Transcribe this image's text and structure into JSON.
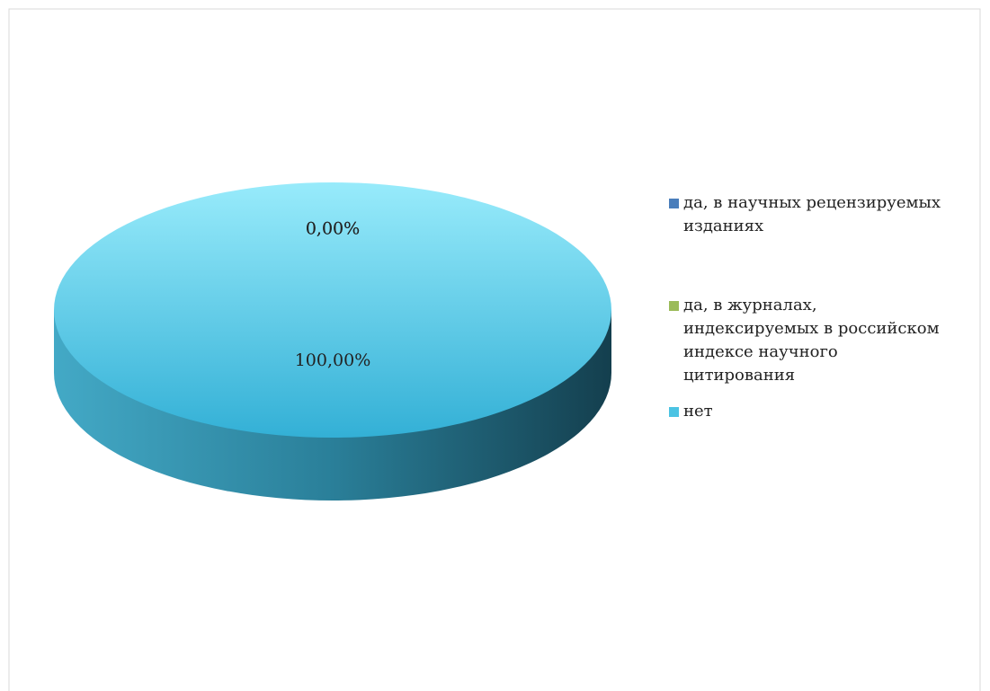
{
  "chart_data": {
    "type": "pie",
    "categories": [
      "да, в научных рецензируемых изданиях",
      "да, в журналах, индексируемых в российском индексе научного цитирования",
      "нет"
    ],
    "values": [
      0,
      0,
      100
    ],
    "value_labels": [
      "0,00%",
      "0,00%",
      "100,00%"
    ],
    "colors": [
      "#4a7ebb",
      "#9bbb59",
      "#4bc3e3"
    ],
    "legend": "right"
  }
}
